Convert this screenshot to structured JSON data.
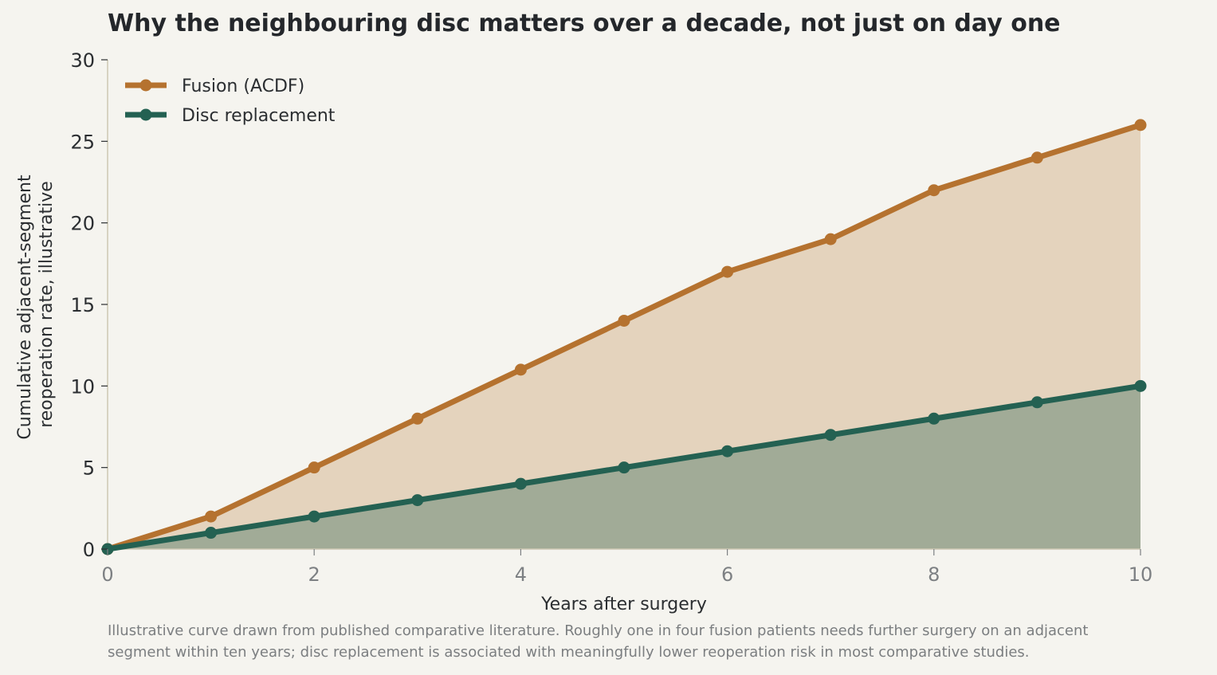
{
  "colors": {
    "background": "#f5f4ef",
    "fusion": "#b5722f",
    "fusion_fill": "#e4d3bd",
    "disc": "#246152",
    "disc_fill": "#a1ab97",
    "axis": "#cdc8b4"
  },
  "chart_data": {
    "type": "area",
    "title": "Why the neighbouring disc matters over a decade, not just on day one",
    "xlabel": "Years after surgery",
    "ylabel_lines": [
      "Cumulative adjacent-segment",
      "reoperation rate, illustrative"
    ],
    "xlim": [
      0,
      10
    ],
    "ylim": [
      0,
      30
    ],
    "x_ticks": [
      0,
      2,
      4,
      6,
      8,
      10
    ],
    "y_ticks": [
      0,
      5,
      10,
      15,
      20,
      25,
      30
    ],
    "grid": false,
    "legend_position": "top-left",
    "x": [
      0,
      1,
      2,
      3,
      4,
      5,
      6,
      7,
      8,
      9,
      10
    ],
    "series": [
      {
        "name": "Fusion (ACDF)",
        "values": [
          0,
          2,
          5,
          8,
          11,
          14,
          17,
          19,
          22,
          24,
          26
        ]
      },
      {
        "name": "Disc replacement",
        "values": [
          0,
          1,
          2,
          3,
          4,
          5,
          6,
          7,
          8,
          9,
          10
        ]
      }
    ]
  },
  "note": {
    "line1": "Illustrative curve drawn from published comparative literature. Roughly one in four fusion patients needs further surgery on an adjacent",
    "line2": "segment within ten years; disc replacement is associated with meaningfully lower reoperation risk in most comparative studies."
  }
}
